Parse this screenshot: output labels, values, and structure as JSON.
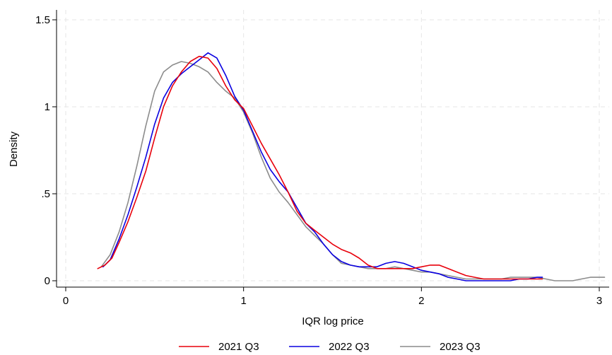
{
  "chart_data": {
    "type": "line",
    "title": "",
    "xlabel": "IQR log price",
    "ylabel": "Density",
    "xlim": [
      0,
      3.05
    ],
    "ylim": [
      0,
      1.55
    ],
    "xticks": [
      {
        "value": 0,
        "label": "0"
      },
      {
        "value": 1,
        "label": "1"
      },
      {
        "value": 2,
        "label": "2"
      },
      {
        "value": 3,
        "label": "3"
      }
    ],
    "yticks": [
      {
        "value": 0,
        "label": "0"
      },
      {
        "value": 0.5,
        "label": ".5"
      },
      {
        "value": 1,
        "label": "1"
      },
      {
        "value": 1.5,
        "label": "1.5"
      }
    ],
    "grid": true,
    "legend_position": "bottom",
    "series": [
      {
        "name": "2021 Q3",
        "color": "#e8000b",
        "points": [
          [
            0.18,
            0.07
          ],
          [
            0.22,
            0.09
          ],
          [
            0.26,
            0.13
          ],
          [
            0.3,
            0.22
          ],
          [
            0.35,
            0.34
          ],
          [
            0.4,
            0.48
          ],
          [
            0.45,
            0.63
          ],
          [
            0.5,
            0.82
          ],
          [
            0.55,
            1.0
          ],
          [
            0.6,
            1.12
          ],
          [
            0.65,
            1.2
          ],
          [
            0.7,
            1.26
          ],
          [
            0.75,
            1.29
          ],
          [
            0.8,
            1.28
          ],
          [
            0.85,
            1.22
          ],
          [
            0.9,
            1.12
          ],
          [
            0.95,
            1.04
          ],
          [
            1.0,
            0.99
          ],
          [
            1.05,
            0.89
          ],
          [
            1.1,
            0.79
          ],
          [
            1.15,
            0.7
          ],
          [
            1.2,
            0.61
          ],
          [
            1.25,
            0.51
          ],
          [
            1.3,
            0.4
          ],
          [
            1.35,
            0.33
          ],
          [
            1.4,
            0.29
          ],
          [
            1.45,
            0.25
          ],
          [
            1.5,
            0.21
          ],
          [
            1.55,
            0.18
          ],
          [
            1.6,
            0.16
          ],
          [
            1.65,
            0.13
          ],
          [
            1.7,
            0.09
          ],
          [
            1.75,
            0.07
          ],
          [
            1.8,
            0.07
          ],
          [
            1.85,
            0.07
          ],
          [
            1.9,
            0.07
          ],
          [
            1.95,
            0.07
          ],
          [
            2.0,
            0.08
          ],
          [
            2.05,
            0.09
          ],
          [
            2.1,
            0.09
          ],
          [
            2.15,
            0.07
          ],
          [
            2.2,
            0.05
          ],
          [
            2.25,
            0.03
          ],
          [
            2.3,
            0.02
          ],
          [
            2.35,
            0.01
          ],
          [
            2.4,
            0.01
          ],
          [
            2.45,
            0.01
          ],
          [
            2.5,
            0.01
          ],
          [
            2.55,
            0.01
          ],
          [
            2.6,
            0.01
          ],
          [
            2.65,
            0.01
          ],
          [
            2.68,
            0.01
          ]
        ]
      },
      {
        "name": "2022 Q3",
        "color": "#0a00e0",
        "points": [
          [
            0.21,
            0.08
          ],
          [
            0.25,
            0.12
          ],
          [
            0.3,
            0.24
          ],
          [
            0.35,
            0.38
          ],
          [
            0.4,
            0.54
          ],
          [
            0.45,
            0.71
          ],
          [
            0.5,
            0.9
          ],
          [
            0.55,
            1.05
          ],
          [
            0.6,
            1.14
          ],
          [
            0.65,
            1.19
          ],
          [
            0.7,
            1.23
          ],
          [
            0.75,
            1.27
          ],
          [
            0.8,
            1.31
          ],
          [
            0.85,
            1.28
          ],
          [
            0.9,
            1.18
          ],
          [
            0.95,
            1.06
          ],
          [
            1.0,
            0.98
          ],
          [
            1.05,
            0.86
          ],
          [
            1.1,
            0.74
          ],
          [
            1.15,
            0.64
          ],
          [
            1.2,
            0.57
          ],
          [
            1.25,
            0.51
          ],
          [
            1.3,
            0.42
          ],
          [
            1.35,
            0.33
          ],
          [
            1.4,
            0.28
          ],
          [
            1.45,
            0.21
          ],
          [
            1.5,
            0.15
          ],
          [
            1.55,
            0.11
          ],
          [
            1.6,
            0.09
          ],
          [
            1.65,
            0.08
          ],
          [
            1.7,
            0.08
          ],
          [
            1.75,
            0.08
          ],
          [
            1.8,
            0.1
          ],
          [
            1.85,
            0.11
          ],
          [
            1.9,
            0.1
          ],
          [
            1.95,
            0.08
          ],
          [
            2.0,
            0.06
          ],
          [
            2.05,
            0.05
          ],
          [
            2.1,
            0.04
          ],
          [
            2.15,
            0.02
          ],
          [
            2.2,
            0.01
          ],
          [
            2.25,
            0.0
          ],
          [
            2.3,
            0.0
          ],
          [
            2.35,
            0.0
          ],
          [
            2.4,
            0.0
          ],
          [
            2.45,
            0.0
          ],
          [
            2.5,
            0.0
          ],
          [
            2.55,
            0.01
          ],
          [
            2.6,
            0.01
          ],
          [
            2.65,
            0.02
          ],
          [
            2.68,
            0.02
          ]
        ]
      },
      {
        "name": "2023 Q3",
        "color": "#8c8c8c",
        "points": [
          [
            0.2,
            0.08
          ],
          [
            0.25,
            0.15
          ],
          [
            0.3,
            0.28
          ],
          [
            0.35,
            0.45
          ],
          [
            0.4,
            0.66
          ],
          [
            0.45,
            0.89
          ],
          [
            0.5,
            1.09
          ],
          [
            0.55,
            1.2
          ],
          [
            0.6,
            1.24
          ],
          [
            0.65,
            1.26
          ],
          [
            0.7,
            1.25
          ],
          [
            0.75,
            1.23
          ],
          [
            0.8,
            1.2
          ],
          [
            0.85,
            1.14
          ],
          [
            0.9,
            1.09
          ],
          [
            0.95,
            1.05
          ],
          [
            1.0,
            0.97
          ],
          [
            1.05,
            0.85
          ],
          [
            1.1,
            0.71
          ],
          [
            1.15,
            0.59
          ],
          [
            1.2,
            0.51
          ],
          [
            1.25,
            0.45
          ],
          [
            1.3,
            0.38
          ],
          [
            1.35,
            0.31
          ],
          [
            1.4,
            0.26
          ],
          [
            1.45,
            0.21
          ],
          [
            1.5,
            0.15
          ],
          [
            1.55,
            0.1
          ],
          [
            1.6,
            0.09
          ],
          [
            1.65,
            0.08
          ],
          [
            1.7,
            0.07
          ],
          [
            1.75,
            0.07
          ],
          [
            1.8,
            0.07
          ],
          [
            1.85,
            0.08
          ],
          [
            1.9,
            0.07
          ],
          [
            1.95,
            0.06
          ],
          [
            2.0,
            0.05
          ],
          [
            2.05,
            0.05
          ],
          [
            2.1,
            0.04
          ],
          [
            2.15,
            0.03
          ],
          [
            2.2,
            0.02
          ],
          [
            2.25,
            0.01
          ],
          [
            2.3,
            0.01
          ],
          [
            2.35,
            0.01
          ],
          [
            2.4,
            0.01
          ],
          [
            2.45,
            0.01
          ],
          [
            2.5,
            0.02
          ],
          [
            2.55,
            0.02
          ],
          [
            2.6,
            0.02
          ],
          [
            2.65,
            0.02
          ],
          [
            2.7,
            0.01
          ],
          [
            2.75,
            0.0
          ],
          [
            2.8,
            0.0
          ],
          [
            2.85,
            0.0
          ],
          [
            2.9,
            0.01
          ],
          [
            2.95,
            0.02
          ],
          [
            3.0,
            0.02
          ],
          [
            3.03,
            0.02
          ]
        ]
      }
    ]
  }
}
